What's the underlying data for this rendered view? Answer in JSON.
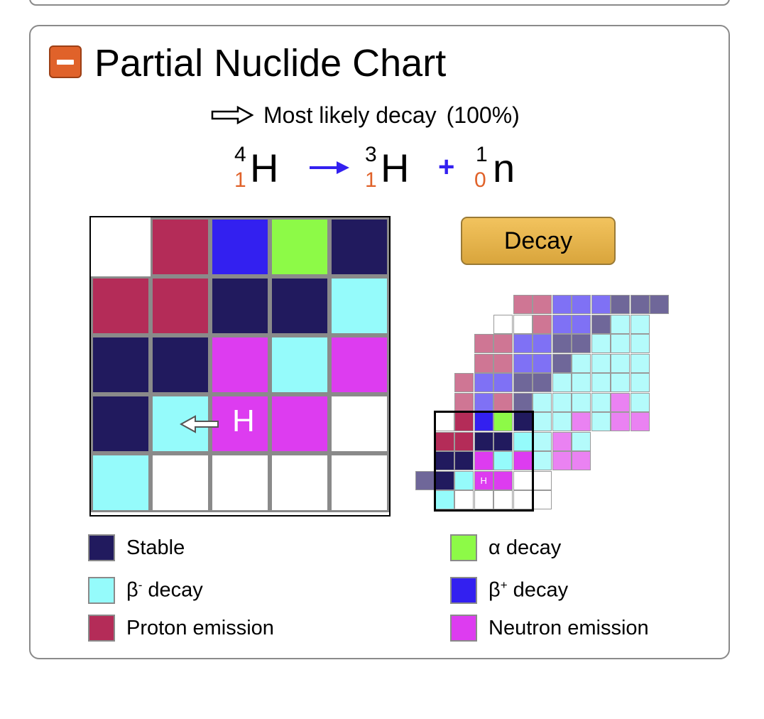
{
  "panel": {
    "title": "Partial Nuclide Chart"
  },
  "icons": {
    "collapse": "minus-square-icon",
    "likely_arrow": "outline-right-arrow-icon",
    "reaction_arrow": "right-arrow-icon",
    "nuclide_arrow": "outline-left-arrow-icon"
  },
  "decay_info": {
    "label": "Most likely decay",
    "probability": "(100%)"
  },
  "equation": {
    "parent": {
      "mass": "4",
      "atomic": "1",
      "symbol": "H"
    },
    "daughter": {
      "mass": "3",
      "atomic": "1",
      "symbol": "H"
    },
    "emitted": {
      "mass": "1",
      "atomic": "0",
      "symbol": "n"
    },
    "plus": "+"
  },
  "colors": {
    "stable": "#211a5e",
    "beta_minus": "#95fbfb",
    "proton_emission": "#b42c58",
    "alpha": "#8dfa47",
    "beta_plus": "#3320f0",
    "neutron_emission": "#dd3cf0",
    "accent": "#e0622a"
  },
  "main_grid": {
    "selected_label": "H",
    "rows": [
      [
        "empty",
        "proton_emission",
        "beta_plus",
        "alpha",
        "stable"
      ],
      [
        "proton_emission",
        "proton_emission",
        "stable",
        "stable",
        "beta_minus"
      ],
      [
        "stable",
        "stable",
        "neutron_emission",
        "beta_minus",
        "neutron_emission"
      ],
      [
        "stable",
        "beta_minus",
        "neutron_emission",
        "neutron_emission",
        "empty"
      ],
      [
        "beta_minus",
        "empty",
        "empty",
        "empty",
        "empty"
      ]
    ]
  },
  "decay_button": {
    "label": "Decay"
  },
  "mini_chart": {
    "selected_label": "H"
  },
  "legend": [
    {
      "key": "stable",
      "label": "Stable",
      "sup": ""
    },
    {
      "key": "beta_minus",
      "label": "β",
      "sup": "-",
      "suffix": " decay"
    },
    {
      "key": "proton_emission",
      "label": "Proton emission",
      "sup": ""
    },
    {
      "key": "alpha",
      "label": "α decay",
      "sup": ""
    },
    {
      "key": "beta_plus",
      "label": "β",
      "sup": "+",
      "suffix": " decay"
    },
    {
      "key": "neutron_emission",
      "label": "Neutron emission",
      "sup": ""
    }
  ]
}
